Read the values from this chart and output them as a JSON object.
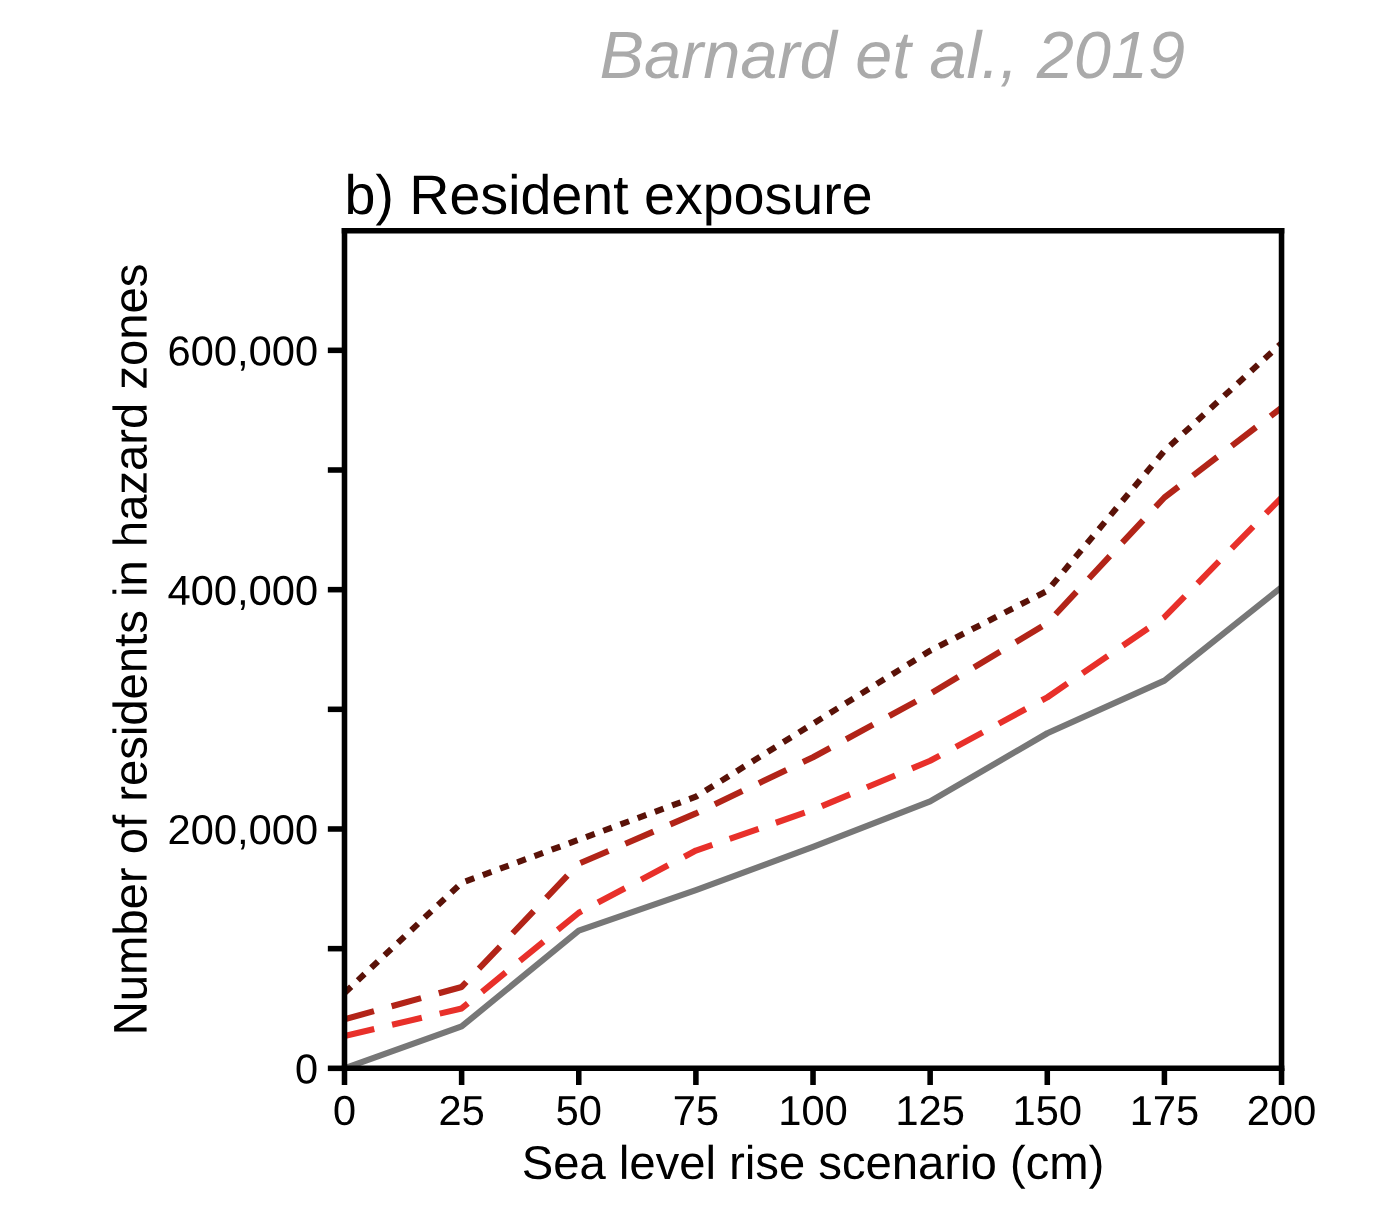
{
  "chart_data": {
    "type": "line",
    "title": "b) Resident exposure",
    "xlabel": "Sea level rise scenario (cm)",
    "ylabel": "Number of residents in hazard zones",
    "annotations": [
      "Barnard et al., 2019"
    ],
    "x": [
      0,
      25,
      50,
      75,
      100,
      125,
      150,
      175,
      200
    ],
    "series": [
      {
        "color": "#777777",
        "line_style": "solid",
        "values": [
          0,
          35000,
          115000,
          149000,
          185000,
          223000,
          280000,
          324000,
          402000
        ]
      },
      {
        "color": "#e8302a",
        "line_style": "dashed",
        "values": [
          27000,
          50000,
          130000,
          182000,
          216000,
          257000,
          310000,
          377000,
          477000
        ]
      },
      {
        "color": "#b22418",
        "line_style": "dashed",
        "values": [
          41000,
          68000,
          171000,
          213000,
          260000,
          313000,
          372000,
          477000,
          552000
        ]
      },
      {
        "color": "#5a1208",
        "line_style": "dotted",
        "values": [
          63000,
          155000,
          191000,
          227000,
          288000,
          349000,
          399000,
          516000,
          606000
        ]
      }
    ],
    "xlim": [
      0,
      200
    ],
    "xticks": [
      0,
      25,
      50,
      75,
      100,
      125,
      150,
      175,
      200
    ],
    "ylim": [
      0,
      700000
    ],
    "yticks": [
      {
        "value": 0,
        "label": "0"
      },
      {
        "value": 100000,
        "label": null
      },
      {
        "value": 200000,
        "label": "200,000"
      },
      {
        "value": 300000,
        "label": null
      },
      {
        "value": 400000,
        "label": "400,000"
      },
      {
        "value": 500000,
        "label": null
      },
      {
        "value": 600000,
        "label": "600,000"
      }
    ],
    "grid": false,
    "legend": false,
    "marker": "none"
  }
}
